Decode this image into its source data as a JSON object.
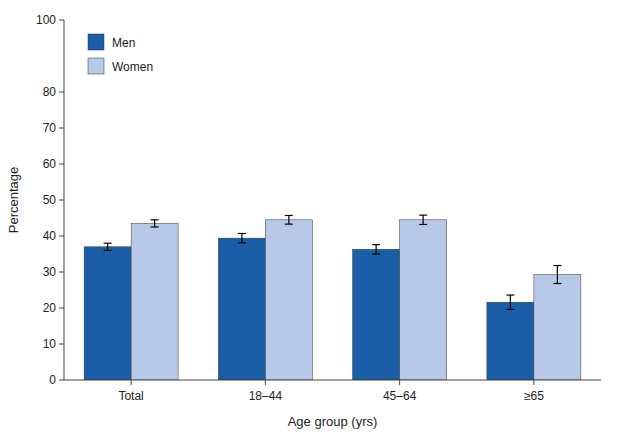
{
  "chart_data": {
    "type": "bar",
    "categories": [
      "Total",
      "18–44",
      "45–64",
      "≥65"
    ],
    "series": [
      {
        "name": "Men",
        "color": "#1a5ea8",
        "values": [
          37.0,
          39.4,
          36.3,
          21.6
        ],
        "errors": [
          1.0,
          1.3,
          1.3,
          2.0
        ]
      },
      {
        "name": "Women",
        "color": "#b8c8e8",
        "values": [
          43.5,
          44.5,
          44.5,
          29.3
        ],
        "errors": [
          1.0,
          1.2,
          1.3,
          2.5
        ]
      }
    ],
    "xlabel": "Age group (yrs)",
    "ylabel": "Percentage",
    "ylim": [
      0,
      100
    ],
    "yticks": [
      0,
      10,
      20,
      30,
      40,
      50,
      60,
      70,
      80,
      100
    ],
    "grid": false,
    "legend": "upper left"
  }
}
